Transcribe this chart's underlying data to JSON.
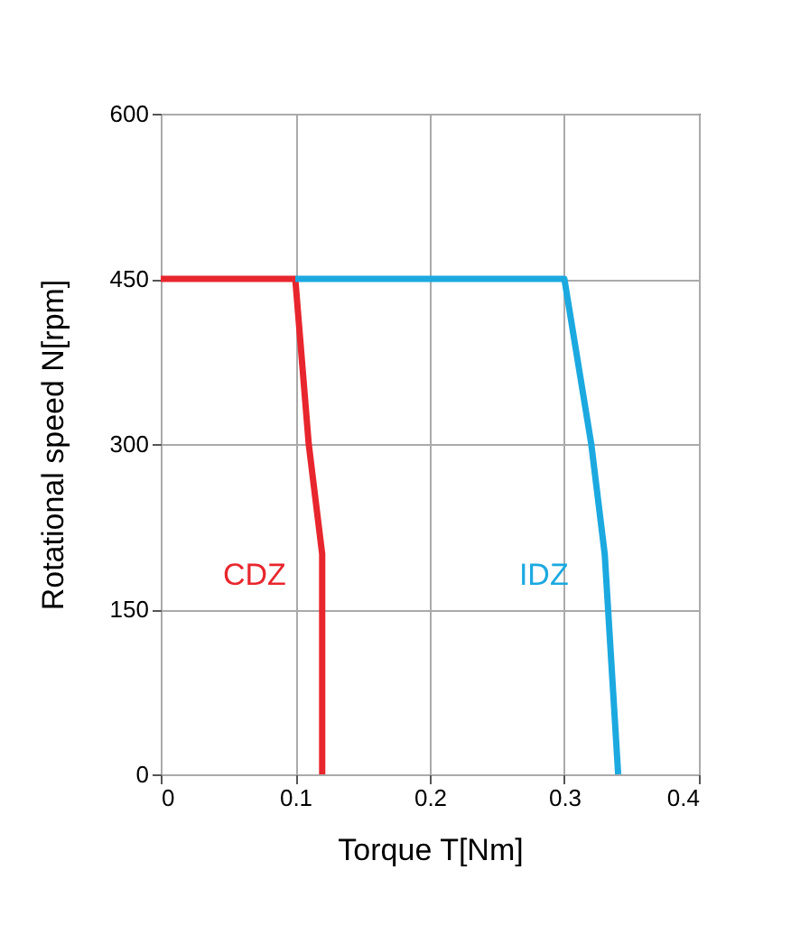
{
  "chart_data": {
    "type": "line",
    "xlabel": "Torque  T[Nm]",
    "ylabel": "Rotational speed  N[rpm]",
    "xlim": [
      0,
      0.4
    ],
    "xticks": [
      0,
      0.1,
      0.2,
      0.3,
      0.4
    ],
    "ylim": [
      0,
      600
    ],
    "yticks": [
      0,
      150,
      300,
      450,
      600
    ],
    "grid": true,
    "legend": false,
    "marker": "none",
    "line_style": "solid",
    "series": [
      {
        "name": "CDZ",
        "color": "#e8262d",
        "x": [
          0,
          0.1,
          0.11,
          0.12,
          0.12
        ],
        "values": [
          450,
          450,
          300,
          200,
          0
        ]
      },
      {
        "name": "IDZ",
        "color": "#1ba9e0",
        "x": [
          0.1,
          0.3,
          0.32,
          0.33,
          0.34
        ],
        "values": [
          450,
          450,
          300,
          200,
          0
        ]
      }
    ]
  }
}
